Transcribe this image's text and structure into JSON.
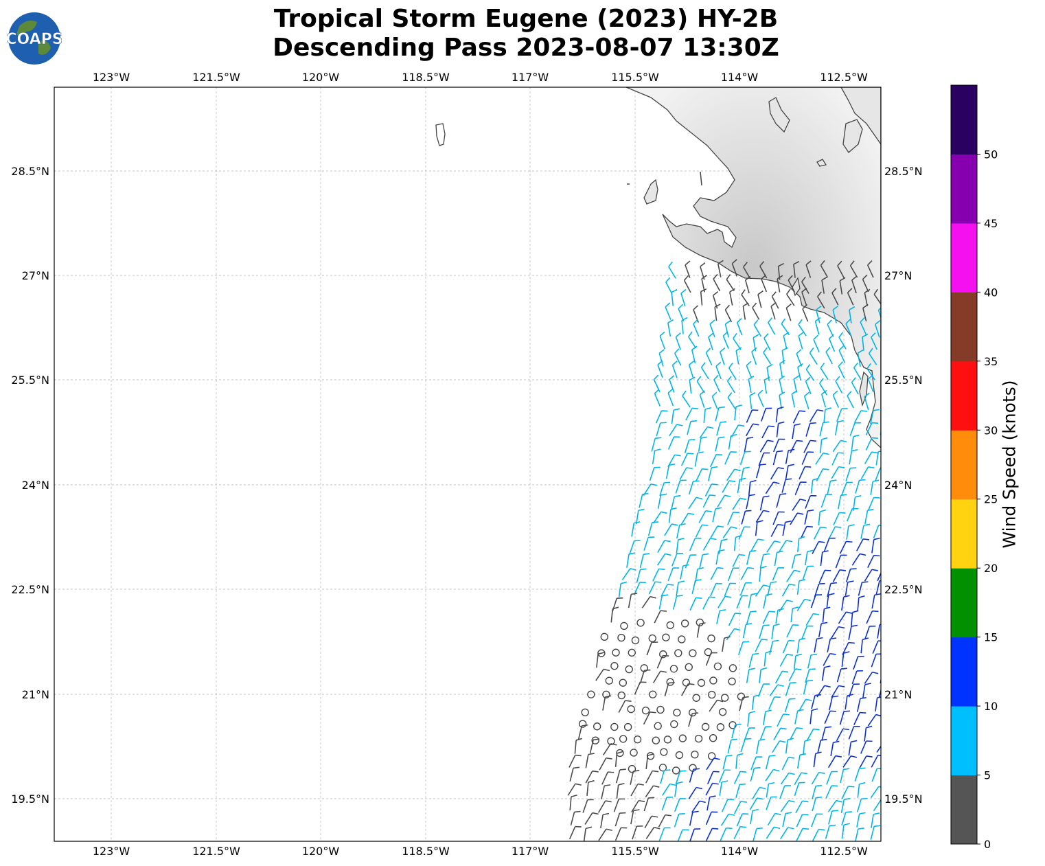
{
  "title": {
    "line1": "Tropical Storm Eugene (2023) HY-2B",
    "line2": "Descending Pass 2023-08-07 13:30Z"
  },
  "logo": {
    "text": "COAPS",
    "icon": "globe-icon"
  },
  "map": {
    "lon_labels": [
      "123°W",
      "121.5°W",
      "120°W",
      "118.5°W",
      "117°W",
      "115.5°W",
      "114°W",
      "112.5°W"
    ],
    "lat_labels": [
      "28.5°N",
      "27°N",
      "25.5°N",
      "24°N",
      "22.5°N",
      "21°N",
      "19.5°N"
    ],
    "gridlines": true,
    "colors": {
      "land_shading": "#d9d9d9",
      "coastline": "#444444",
      "grid": "#b0b0b0"
    }
  },
  "colorbar": {
    "title": "Wind Speed (knots)",
    "tick_labels": [
      "0",
      "5",
      "10",
      "15",
      "20",
      "25",
      "30",
      "35",
      "40",
      "45",
      "50"
    ],
    "bins": [
      {
        "range": "0-5",
        "color": "#555555"
      },
      {
        "range": "5-10",
        "color": "#00bfff"
      },
      {
        "range": "10-15",
        "color": "#0033ff"
      },
      {
        "range": "15-20",
        "color": "#009000"
      },
      {
        "range": "20-25",
        "color": "#ffd30f"
      },
      {
        "range": "25-30",
        "color": "#ff8c0a"
      },
      {
        "range": "30-35",
        "color": "#ff1010"
      },
      {
        "range": "35-40",
        "color": "#843c28"
      },
      {
        "range": "40-45",
        "color": "#f510f0"
      },
      {
        "range": "45-50",
        "color": "#8600b0"
      },
      {
        "range": "50+",
        "color": "#2a0060"
      }
    ]
  }
}
